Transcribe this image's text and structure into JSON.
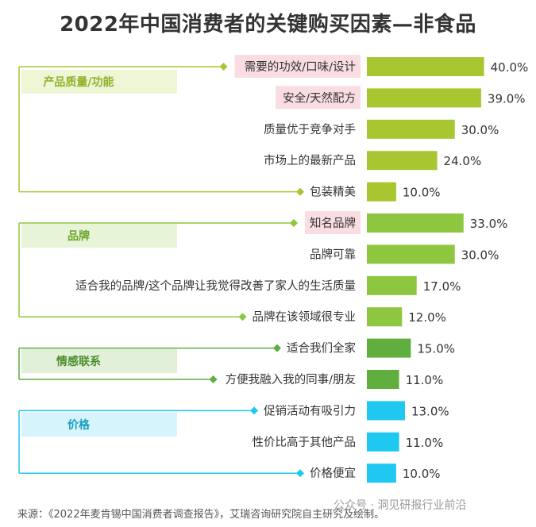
{
  "title": "2022年中国消费者的关键购买因素—非食品",
  "source": "来源：《2022年麦肯锡中国消费者调查报告》，艾瑞咨询研究院自主研究及绘制。",
  "watermark": "公众号 · 洞见研报行业前沿",
  "colors": {
    "product_quality": "#a8c630",
    "brand": "#8dc63f",
    "emotion": "#5fae3e",
    "price": "#1ec8f0",
    "highlight_bg": "#f9dde2"
  },
  "chart_data": {
    "type": "bar",
    "orientation": "horizontal",
    "unit": "%",
    "groups": [
      {
        "name": "产品质量/功能",
        "color_key": "product_quality",
        "items": [
          {
            "label": "需要的功效/口味/设计",
            "value": 40.0,
            "value_label": "40.0%",
            "highlight": true
          },
          {
            "label": "安全/天然配方",
            "value": 39.0,
            "value_label": "39.0%",
            "highlight": true
          },
          {
            "label": "质量优于竞争对手",
            "value": 30.0,
            "value_label": "30.0%",
            "highlight": false
          },
          {
            "label": "市场上的最新产品",
            "value": 24.0,
            "value_label": "24.0%",
            "highlight": false
          },
          {
            "label": "包装精美",
            "value": 10.0,
            "value_label": "10.0%",
            "highlight": false
          }
        ]
      },
      {
        "name": "品牌",
        "color_key": "brand",
        "items": [
          {
            "label": "知名品牌",
            "value": 33.0,
            "value_label": "33.0%",
            "highlight": true
          },
          {
            "label": "品牌可靠",
            "value": 30.0,
            "value_label": "30.0%",
            "highlight": false
          },
          {
            "label": "适合我的品牌/这个品牌让我觉得改善了家人的生活质量",
            "value": 17.0,
            "value_label": "17.0%",
            "highlight": false
          },
          {
            "label": "品牌在该领域很专业",
            "value": 12.0,
            "value_label": "12.0%",
            "highlight": false
          }
        ]
      },
      {
        "name": "情感联系",
        "color_key": "emotion",
        "items": [
          {
            "label": "适合我们全家",
            "value": 15.0,
            "value_label": "15.0%",
            "highlight": false
          },
          {
            "label": "方便我融入我的同事/朋友",
            "value": 11.0,
            "value_label": "11.0%",
            "highlight": false
          }
        ]
      },
      {
        "name": "价格",
        "color_key": "price",
        "items": [
          {
            "label": "促销活动有吸引力",
            "value": 13.0,
            "value_label": "13.0%",
            "highlight": false
          },
          {
            "label": "性价比高于其他产品",
            "value": 11.0,
            "value_label": "11.0%",
            "highlight": false
          },
          {
            "label": "价格便宜",
            "value": 10.0,
            "value_label": "10.0%",
            "highlight": false
          }
        ]
      }
    ]
  }
}
